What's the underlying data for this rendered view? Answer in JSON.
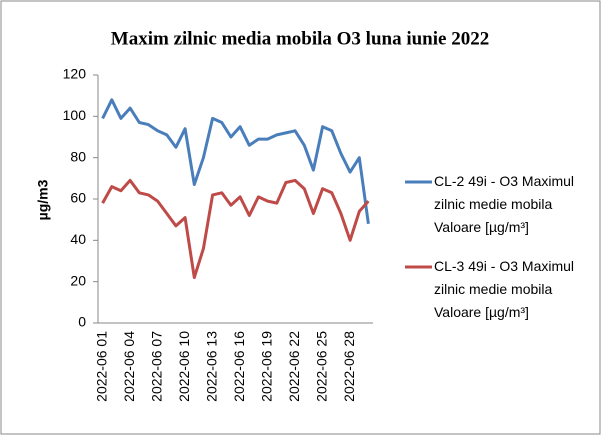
{
  "chart_data": {
    "type": "line",
    "title": "Maxim zilnic media mobila O3 luna iunie 2022",
    "ylabel": "µg/m3",
    "categories": [
      "2022-06 01",
      null,
      null,
      "2022-06 04",
      null,
      null,
      "2022-06 07",
      null,
      null,
      "2022-06 10",
      null,
      null,
      "2022-06 13",
      null,
      null,
      "2022-06 16",
      null,
      null,
      "2022-06 19",
      null,
      null,
      "2022-06 22",
      null,
      null,
      "2022-06 25",
      null,
      null,
      "2022-06 28",
      null,
      null
    ],
    "series": [
      {
        "name": "CL-2 49i - O3 Maximul zilnic medie mobila Valoare [µg/m³]",
        "color": "#4a7ebb",
        "values": [
          99,
          108,
          99,
          104,
          97,
          96,
          93,
          91,
          85,
          94,
          67,
          80,
          99,
          97,
          90,
          95,
          86,
          89,
          89,
          91,
          92,
          93,
          86,
          74,
          95,
          93,
          82,
          73,
          80,
          48
        ]
      },
      {
        "name": "CL-3 49i - O3 Maximul zilnic medie mobila Valoare [µg/m³]",
        "color": "#be4b48",
        "values": [
          58,
          66,
          64,
          69,
          63,
          62,
          59,
          53,
          47,
          51,
          22,
          36,
          62,
          63,
          57,
          61,
          52,
          61,
          59,
          58,
          68,
          69,
          65,
          53,
          65,
          63,
          53,
          40,
          54,
          59
        ]
      }
    ],
    "ylim": [
      0,
      120
    ],
    "yticks": [
      0,
      20,
      40,
      60,
      80,
      100,
      120
    ],
    "grid": false,
    "legend": "right"
  }
}
